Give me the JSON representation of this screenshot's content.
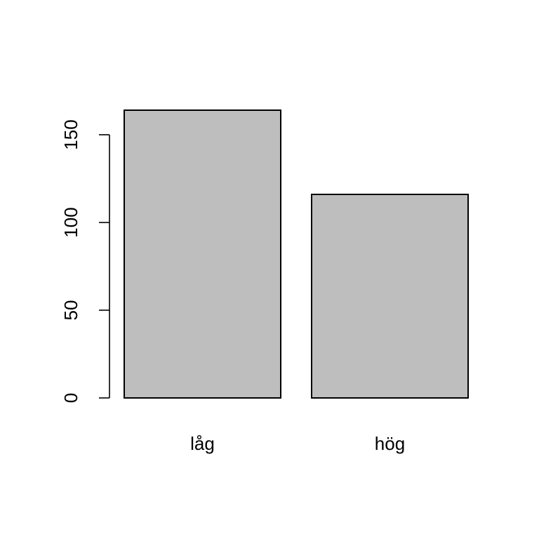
{
  "chart_data": {
    "type": "bar",
    "categories": [
      "låg",
      "hög"
    ],
    "values": [
      164,
      116
    ],
    "title": "",
    "xlabel": "",
    "ylabel": "",
    "ylim": [
      0,
      164
    ],
    "yticks": [
      0,
      50,
      100,
      150
    ],
    "grid": false,
    "bar_color": "#bebebe",
    "border_color": "#000000"
  }
}
